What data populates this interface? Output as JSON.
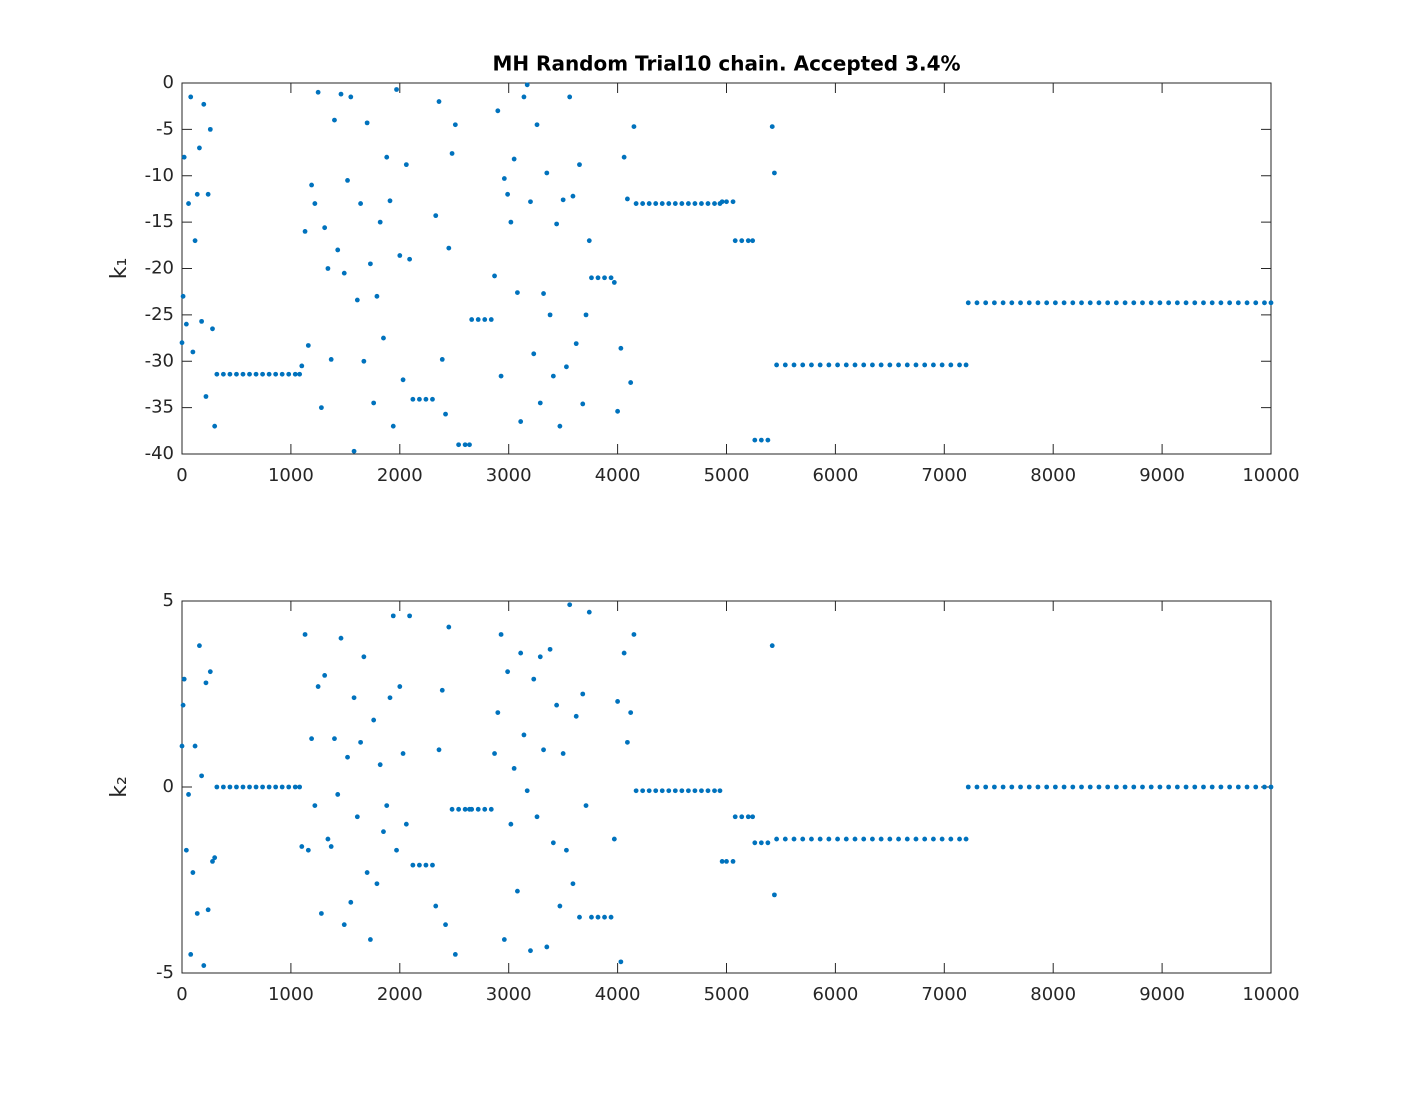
{
  "chart_data": [
    {
      "type": "scatter",
      "title": "MH Random Trial10 chain. Accepted 3.4%",
      "ylabel": "k₁",
      "color": "#0072bd",
      "xlim": [
        0,
        10000
      ],
      "xticks": [
        0,
        1000,
        2000,
        3000,
        4000,
        5000,
        6000,
        7000,
        8000,
        9000,
        10000
      ],
      "ylim": [
        -40,
        0
      ],
      "yticks": [
        -40,
        -35,
        -30,
        -25,
        -20,
        -15,
        -10,
        -5,
        0
      ],
      "grid": false,
      "x": [
        0,
        10,
        20,
        40,
        60,
        80,
        100,
        120,
        140,
        160,
        180,
        200,
        220,
        240,
        260,
        280,
        300,
        320,
        380,
        440,
        500,
        560,
        620,
        680,
        740,
        800,
        860,
        920,
        980,
        1040,
        1080,
        1100,
        1130,
        1160,
        1190,
        1220,
        1250,
        1280,
        1310,
        1340,
        1370,
        1400,
        1430,
        1460,
        1490,
        1520,
        1550,
        1580,
        1610,
        1640,
        1670,
        1700,
        1730,
        1760,
        1790,
        1820,
        1850,
        1880,
        1910,
        1940,
        1970,
        2000,
        2030,
        2060,
        2090,
        2120,
        2180,
        2240,
        2300,
        2330,
        2360,
        2390,
        2420,
        2450,
        2480,
        2510,
        2540,
        2600,
        2640,
        2660,
        2720,
        2780,
        2840,
        2870,
        2900,
        2930,
        2960,
        2990,
        3020,
        3050,
        3080,
        3110,
        3140,
        3170,
        3200,
        3230,
        3260,
        3290,
        3320,
        3350,
        3380,
        3410,
        3440,
        3470,
        3500,
        3530,
        3560,
        3590,
        3620,
        3650,
        3680,
        3710,
        3740,
        3760,
        3820,
        3880,
        3940,
        3970,
        4000,
        4030,
        4060,
        4090,
        4120,
        4150,
        4170,
        4230,
        4290,
        4350,
        4410,
        4470,
        4530,
        4590,
        4650,
        4710,
        4770,
        4830,
        4890,
        4940,
        4960,
        5000,
        5060,
        5080,
        5140,
        5200,
        5240,
        5260,
        5320,
        5380,
        5420,
        5440,
        5460,
        5540,
        5620,
        5700,
        5780,
        5860,
        5940,
        6020,
        6100,
        6180,
        6260,
        6340,
        6420,
        6500,
        6580,
        6660,
        6740,
        6820,
        6900,
        6980,
        7060,
        7140,
        7200,
        7220,
        7300,
        7380,
        7460,
        7540,
        7620,
        7700,
        7780,
        7860,
        7940,
        8020,
        8100,
        8180,
        8260,
        8340,
        8420,
        8500,
        8580,
        8660,
        8740,
        8820,
        8900,
        8980,
        9060,
        9140,
        9220,
        9300,
        9380,
        9460,
        9540,
        9620,
        9700,
        9780,
        9860,
        9940,
        10000
      ],
      "values": [
        -28,
        -23,
        -8,
        -26,
        -13,
        -1.5,
        -29,
        -17,
        -12,
        -7,
        -25.7,
        -2.3,
        -33.8,
        -12,
        -5,
        -26.5,
        -37,
        -31.4,
        -31.4,
        -31.4,
        -31.4,
        -31.4,
        -31.4,
        -31.4,
        -31.4,
        -31.4,
        -31.4,
        -31.4,
        -31.4,
        -31.4,
        -31.4,
        -30.5,
        -16,
        -28.3,
        -11,
        -13,
        -1,
        -35,
        -15.6,
        -20,
        -29.8,
        -4,
        -18,
        -1.2,
        -20.5,
        -10.5,
        -1.5,
        -39.7,
        -23.4,
        -13,
        -30,
        -4.3,
        -19.5,
        -34.5,
        -23,
        -15,
        -27.5,
        -8,
        -12.7,
        -37,
        -0.7,
        -18.6,
        -32,
        -8.8,
        -19,
        -34.1,
        -34.1,
        -34.1,
        -34.1,
        -14.3,
        -2,
        -29.8,
        -35.7,
        -17.8,
        -7.6,
        -4.5,
        -39,
        -39,
        -39,
        -25.5,
        -25.5,
        -25.5,
        -25.5,
        -20.8,
        -3,
        -31.6,
        -10.3,
        -12,
        -15,
        -8.2,
        -22.6,
        -36.5,
        -1.5,
        -0.2,
        -12.8,
        -29.2,
        -4.5,
        -34.5,
        -22.7,
        -9.7,
        -25,
        -31.6,
        -15.2,
        -37,
        -12.6,
        -30.6,
        -1.5,
        -12.2,
        -28.1,
        -8.8,
        -34.6,
        -25,
        -17,
        -21,
        -21,
        -21,
        -21,
        -21.5,
        -35.4,
        -28.6,
        -8,
        -12.5,
        -32.3,
        -4.7,
        -13,
        -13,
        -13,
        -13,
        -13,
        -13,
        -13,
        -13,
        -13,
        -13,
        -13,
        -13,
        -13,
        -13,
        -12.8,
        -12.8,
        -12.8,
        -17,
        -17,
        -17,
        -17,
        -38.5,
        -38.5,
        -38.5,
        -4.7,
        -9.7,
        -30.4,
        -30.4,
        -30.4,
        -30.4,
        -30.4,
        -30.4,
        -30.4,
        -30.4,
        -30.4,
        -30.4,
        -30.4,
        -30.4,
        -30.4,
        -30.4,
        -30.4,
        -30.4,
        -30.4,
        -30.4,
        -30.4,
        -30.4,
        -30.4,
        -30.4,
        -30.4,
        -23.7,
        -23.7,
        -23.7,
        -23.7,
        -23.7,
        -23.7,
        -23.7,
        -23.7,
        -23.7,
        -23.7,
        -23.7,
        -23.7,
        -23.7,
        -23.7,
        -23.7,
        -23.7,
        -23.7,
        -23.7,
        -23.7,
        -23.7,
        -23.7,
        -23.7,
        -23.7,
        -23.7,
        -23.7,
        -23.7,
        -23.7,
        -23.7,
        -23.7,
        -23.7,
        -23.7,
        -23.7,
        -23.7,
        -23.7,
        -23.7,
        -23.7
      ]
    },
    {
      "type": "scatter",
      "ylabel": "k₂",
      "color": "#0072bd",
      "xlim": [
        0,
        10000
      ],
      "xticks": [
        0,
        1000,
        2000,
        3000,
        4000,
        5000,
        6000,
        7000,
        8000,
        9000,
        10000
      ],
      "ylim": [
        -5,
        5
      ],
      "yticks": [
        -5,
        0,
        5
      ],
      "grid": false,
      "x": [
        0,
        10,
        20,
        40,
        60,
        80,
        100,
        120,
        140,
        160,
        180,
        200,
        220,
        240,
        260,
        280,
        300,
        320,
        380,
        440,
        500,
        560,
        620,
        680,
        740,
        800,
        860,
        920,
        980,
        1040,
        1080,
        1100,
        1130,
        1160,
        1190,
        1220,
        1250,
        1280,
        1310,
        1340,
        1370,
        1400,
        1430,
        1460,
        1490,
        1520,
        1550,
        1580,
        1610,
        1640,
        1670,
        1700,
        1730,
        1760,
        1790,
        1820,
        1850,
        1880,
        1910,
        1940,
        1970,
        2000,
        2030,
        2060,
        2090,
        2120,
        2180,
        2240,
        2300,
        2330,
        2360,
        2390,
        2420,
        2450,
        2480,
        2510,
        2540,
        2600,
        2640,
        2660,
        2720,
        2780,
        2840,
        2870,
        2900,
        2930,
        2960,
        2990,
        3020,
        3050,
        3080,
        3110,
        3140,
        3170,
        3200,
        3230,
        3260,
        3290,
        3320,
        3350,
        3380,
        3410,
        3440,
        3470,
        3500,
        3530,
        3560,
        3590,
        3620,
        3650,
        3680,
        3710,
        3740,
        3760,
        3820,
        3880,
        3940,
        3970,
        4000,
        4030,
        4060,
        4090,
        4120,
        4150,
        4170,
        4230,
        4290,
        4350,
        4410,
        4470,
        4530,
        4590,
        4650,
        4710,
        4770,
        4830,
        4890,
        4940,
        4960,
        5000,
        5060,
        5080,
        5140,
        5200,
        5240,
        5260,
        5320,
        5380,
        5420,
        5440,
        5460,
        5540,
        5620,
        5700,
        5780,
        5860,
        5940,
        6020,
        6100,
        6180,
        6260,
        6340,
        6420,
        6500,
        6580,
        6660,
        6740,
        6820,
        6900,
        6980,
        7060,
        7140,
        7200,
        7220,
        7300,
        7380,
        7460,
        7540,
        7620,
        7700,
        7780,
        7860,
        7940,
        8020,
        8100,
        8180,
        8260,
        8340,
        8420,
        8500,
        8580,
        8660,
        8740,
        8820,
        8900,
        8980,
        9060,
        9140,
        9220,
        9300,
        9380,
        9460,
        9540,
        9620,
        9700,
        9780,
        9860,
        9940,
        10000
      ],
      "values": [
        1.1,
        2.2,
        2.9,
        -1.7,
        -0.2,
        -4.5,
        -2.3,
        1.1,
        -3.4,
        3.8,
        0.3,
        -4.8,
        2.8,
        -3.3,
        3.1,
        -2.0,
        -1.9,
        0,
        0,
        0,
        0,
        0,
        0,
        0,
        0,
        0,
        0,
        0,
        0,
        0,
        0,
        -1.6,
        4.1,
        -1.7,
        1.3,
        -0.5,
        2.7,
        -3.4,
        3.0,
        -1.4,
        -1.6,
        1.3,
        -0.2,
        4.0,
        -3.7,
        0.8,
        -3.1,
        2.4,
        -0.8,
        1.2,
        3.5,
        -2.3,
        -4.1,
        1.8,
        -2.6,
        0.6,
        -1.2,
        -0.5,
        2.4,
        4.6,
        -1.7,
        2.7,
        0.9,
        -1.0,
        4.6,
        -2.1,
        -2.1,
        -2.1,
        -2.1,
        -3.2,
        1.0,
        2.6,
        -3.7,
        4.3,
        -0.6,
        -4.5,
        -0.6,
        -0.6,
        -0.6,
        -0.6,
        -0.6,
        -0.6,
        -0.6,
        0.9,
        2.0,
        4.1,
        -4.1,
        3.1,
        -1.0,
        0.5,
        -2.8,
        3.6,
        1.4,
        -0.1,
        -4.4,
        2.9,
        -0.8,
        3.5,
        1.0,
        -4.3,
        3.7,
        -1.5,
        2.2,
        -3.2,
        0.9,
        -1.7,
        4.9,
        -2.6,
        1.9,
        -3.5,
        2.5,
        -0.5,
        4.7,
        -3.5,
        -3.5,
        -3.5,
        -3.5,
        -1.4,
        2.3,
        -4.7,
        3.6,
        1.2,
        2.0,
        4.1,
        -0.1,
        -0.1,
        -0.1,
        -0.1,
        -0.1,
        -0.1,
        -0.1,
        -0.1,
        -0.1,
        -0.1,
        -0.1,
        -0.1,
        -0.1,
        -0.1,
        -2,
        -2,
        -2,
        -0.8,
        -0.8,
        -0.8,
        -0.8,
        -1.5,
        -1.5,
        -1.5,
        3.8,
        -2.9,
        -1.4,
        -1.4,
        -1.4,
        -1.4,
        -1.4,
        -1.4,
        -1.4,
        -1.4,
        -1.4,
        -1.4,
        -1.4,
        -1.4,
        -1.4,
        -1.4,
        -1.4,
        -1.4,
        -1.4,
        -1.4,
        -1.4,
        -1.4,
        -1.4,
        -1.4,
        -1.4,
        0,
        0,
        0,
        0,
        0,
        0,
        0,
        0,
        0,
        0,
        0,
        0,
        0,
        0,
        0,
        0,
        0,
        0,
        0,
        0,
        0,
        0,
        0,
        0,
        0,
        0,
        0,
        0,
        0,
        0,
        0,
        0,
        0,
        0,
        0,
        0
      ]
    }
  ]
}
